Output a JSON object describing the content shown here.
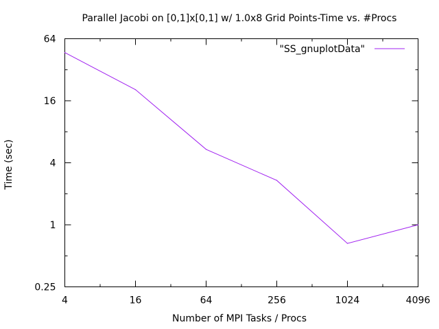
{
  "chart_data": {
    "type": "line",
    "title": "Parallel Jacobi on [0,1]x[0,1] w/ 1.0x8 Grid Points-Time vs. #Procs",
    "xlabel": "Number of MPI Tasks / Procs",
    "ylabel": "Time (sec)",
    "xscale": "log2",
    "yscale": "log2",
    "xlim": [
      4,
      4096
    ],
    "ylim": [
      0.25,
      64
    ],
    "x_ticks": [
      4,
      16,
      64,
      256,
      1024,
      4096
    ],
    "x_tick_labels": [
      "4",
      "16",
      "64",
      "256",
      "1024",
      "4096"
    ],
    "y_ticks": [
      0.25,
      1,
      4,
      16,
      64
    ],
    "y_tick_labels": [
      "0.25",
      "1",
      "4",
      "16",
      "64"
    ],
    "grid": false,
    "legend_position": "top-right",
    "series": [
      {
        "name": "\"SS_gnuplotData\"",
        "color": "#a020f0",
        "x": [
          4,
          16,
          64,
          256,
          1024,
          4096
        ],
        "y": [
          47,
          20.5,
          5.4,
          2.7,
          0.66,
          1.0
        ]
      }
    ]
  }
}
